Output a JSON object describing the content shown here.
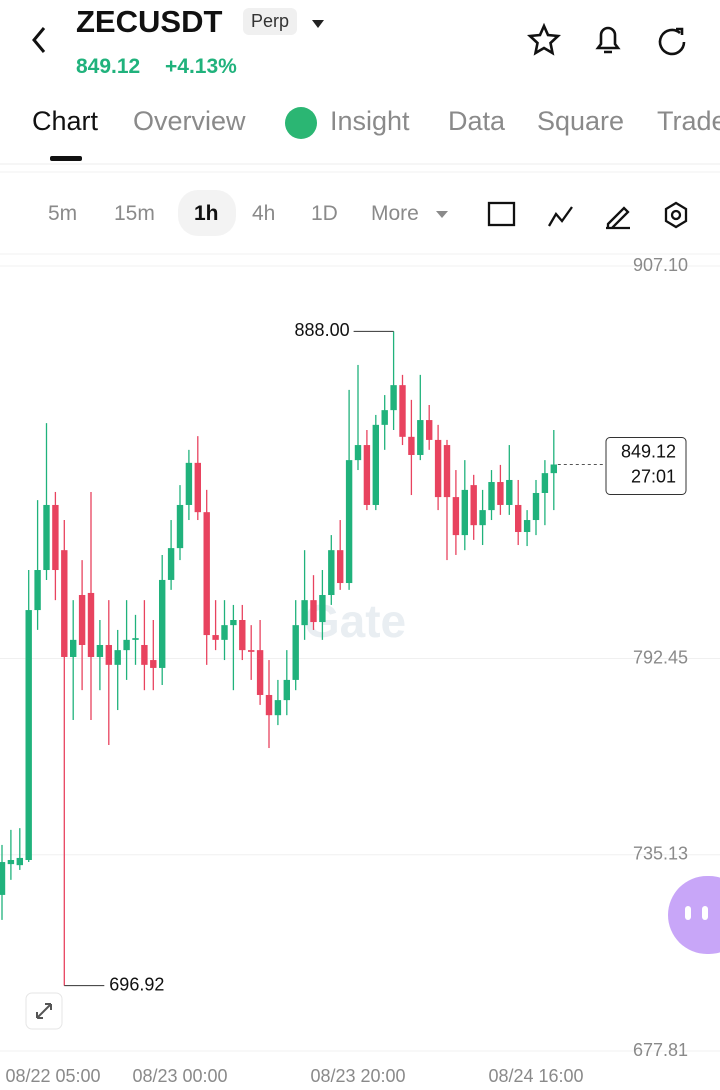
{
  "header": {
    "symbol": "ZECUSDT",
    "contract": "Perp",
    "price": "849.12",
    "change": "+4.13%"
  },
  "tabs": [
    "Chart",
    "Overview",
    "Insight",
    "Data",
    "Square",
    "Trade"
  ],
  "intervals": [
    "5m",
    "15m",
    "1h",
    "4h",
    "1D",
    "More"
  ],
  "chart_data": {
    "type": "candlestick",
    "watermark": "Gate",
    "categories": [
      null,
      "08/22 05:00",
      null,
      null,
      null,
      null,
      null,
      null,
      null,
      null,
      null,
      null,
      null,
      null,
      null,
      null,
      null,
      null,
      null,
      null,
      "08/23 00:00",
      null,
      null,
      null,
      null,
      null,
      null,
      null,
      null,
      null,
      null,
      null,
      null,
      null,
      null,
      null,
      null,
      null,
      null,
      null,
      "08/23 20:00",
      null,
      null,
      null,
      null,
      null,
      null,
      null,
      null,
      null,
      null,
      null,
      null,
      null,
      null,
      null,
      null,
      null,
      null,
      null,
      "08/24 16:00",
      null,
      null
    ],
    "open": [
      723.4,
      732.4,
      732.1,
      733.6,
      806.6,
      818.3,
      837.3,
      824.1,
      792.9,
      811.0,
      811.6,
      792.9,
      796.4,
      790.6,
      794.9,
      797.9,
      796.4,
      792.0,
      789.7,
      815.4,
      824.7,
      837.3,
      849.6,
      835.2,
      799.3,
      797.9,
      802.2,
      803.7,
      794.9,
      794.9,
      781.8,
      775.9,
      780.3,
      786.2,
      802.2,
      809.5,
      803.1,
      811.0,
      824.1,
      814.5,
      850.4,
      854.8,
      837.3,
      860.7,
      865.0,
      872.3,
      857.2,
      851.9,
      862.1,
      856.3,
      854.8,
      839.6,
      828.5,
      843.1,
      831.4,
      835.8,
      844.0,
      837.3,
      837.3,
      829.4,
      832.9,
      840.8,
      846.6
    ],
    "high": [
      738.0,
      742.4,
      742.9,
      818.3,
      838.7,
      861.2,
      841.1,
      832.9,
      809.5,
      821.2,
      841.1,
      803.7,
      809.5,
      800.8,
      809.5,
      805.2,
      809.5,
      803.7,
      822.7,
      832.9,
      843.1,
      853.4,
      857.4,
      841.7,
      809.5,
      809.5,
      808.1,
      808.1,
      802.2,
      803.7,
      792.0,
      786.2,
      794.9,
      809.5,
      824.1,
      816.8,
      818.3,
      828.5,
      832.9,
      870.9,
      878.2,
      859.2,
      863.6,
      869.4,
      888,
      875.3,
      868.0,
      875.3,
      866.5,
      860.7,
      856.3,
      847.5,
      850.4,
      846.1,
      841.7,
      847.5,
      849.0,
      854.8,
      844.6,
      835.8,
      844.6,
      850.4,
      859.2
    ],
    "low": [
      716.1,
      727.8,
      730.7,
      733.0,
      800.8,
      815.4,
      809.5,
      696.92,
      774.5,
      783.2,
      774.5,
      783.2,
      767.2,
      777.4,
      786.2,
      790.6,
      783.2,
      783.2,
      784.7,
      812.5,
      821.2,
      832.9,
      832.9,
      790.6,
      794.9,
      792.0,
      783.2,
      792.0,
      786.2,
      778.9,
      766.3,
      773.0,
      775.9,
      783.2,
      797.9,
      800.8,
      797.9,
      808.1,
      812.5,
      812.5,
      847.5,
      835.8,
      835.8,
      853.4,
      859.2,
      854.8,
      840.2,
      850.4,
      853.4,
      835.8,
      821.2,
      822.7,
      824.1,
      827.1,
      825.6,
      832.9,
      834.4,
      834.4,
      825.6,
      825.3,
      828.5,
      831.4,
      835.8
    ],
    "close": [
      733.0,
      733.6,
      734.2,
      806.6,
      818.3,
      837.3,
      818.3,
      792.9,
      797.9,
      796.4,
      792.9,
      796.4,
      790.6,
      794.9,
      797.9,
      798.4,
      790.6,
      789.7,
      815.4,
      824.7,
      837.3,
      849.6,
      835.2,
      799.3,
      797.9,
      802.2,
      803.7,
      794.9,
      794.4,
      781.8,
      775.9,
      780.3,
      786.2,
      802.2,
      809.5,
      803.1,
      811.0,
      824.1,
      814.5,
      850.4,
      854.8,
      837.3,
      860.7,
      865.0,
      872.3,
      857.2,
      851.9,
      862.1,
      856.3,
      839.6,
      839.6,
      828.5,
      841.7,
      831.4,
      835.8,
      844.0,
      837.3,
      844.6,
      829.4,
      832.9,
      840.8,
      846.6,
      849.12
    ],
    "up_color": "#20b27c",
    "down_color": "#e8435f",
    "high_label": "888.00",
    "low_label": "696.92",
    "last_price_label": "849.12",
    "countdown": "27:01",
    "ylim": [
      677.81,
      907.1
    ],
    "yticks": [
      {
        "value": 907.1,
        "label": "907.10"
      },
      792.45,
      735.13,
      677.81
    ],
    "grid": true
  }
}
